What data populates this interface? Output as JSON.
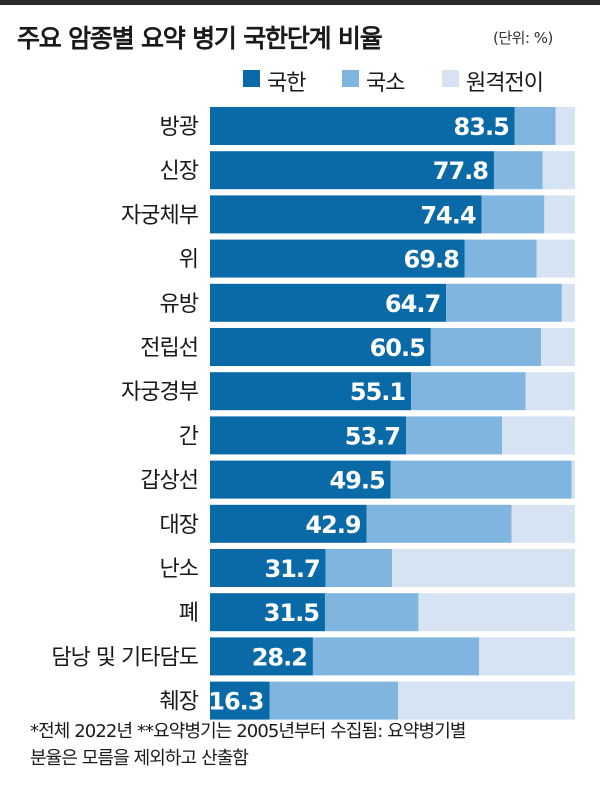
{
  "header": {
    "title": "주요 암종별 요약 병기 국한단계 비율",
    "unit": "(단위: %)"
  },
  "legend": [
    {
      "label": "국한",
      "color": "#0a6aa8"
    },
    {
      "label": "국소",
      "color": "#7fb5de"
    },
    {
      "label": "원격전이",
      "color": "#d6e3f3"
    }
  ],
  "footnote": {
    "line1": "*전체 2022년  **요약병기는 2005년부터 수집됨: 요약병기별",
    "line2": "분율은 모름을 제외하고 산출함"
  },
  "chart_data": {
    "type": "bar",
    "orientation": "horizontal",
    "stacked": true,
    "title": "주요 암종별 요약 병기 국한단계 비율",
    "unit": "%",
    "xlim": [
      0,
      100
    ],
    "legend_position": "top-right",
    "grid": false,
    "categories": [
      "방광",
      "신장",
      "자궁체부",
      "위",
      "유방",
      "전립선",
      "자궁경부",
      "간",
      "갑상선",
      "대장",
      "난소",
      "폐",
      "담낭 및 기타담도",
      "췌장"
    ],
    "series": [
      {
        "name": "국한",
        "color": "#0a6aa8",
        "values": [
          83.5,
          77.8,
          74.4,
          69.8,
          64.7,
          60.5,
          55.1,
          53.7,
          49.5,
          42.9,
          31.7,
          31.5,
          28.2,
          16.3
        ],
        "labeled": true
      },
      {
        "name": "국소",
        "color": "#7fb5de",
        "values": [
          11.2,
          13.3,
          17.2,
          19.7,
          31.7,
          30.2,
          31.4,
          26.3,
          49.6,
          39.7,
          18.2,
          25.6,
          45.5,
          35.2
        ]
      },
      {
        "name": "원격전이",
        "color": "#d6e3f3",
        "values": [
          5.3,
          8.9,
          8.4,
          10.5,
          3.6,
          9.3,
          13.5,
          20.0,
          0.9,
          17.4,
          50.1,
          42.9,
          26.3,
          48.5
        ]
      }
    ]
  }
}
